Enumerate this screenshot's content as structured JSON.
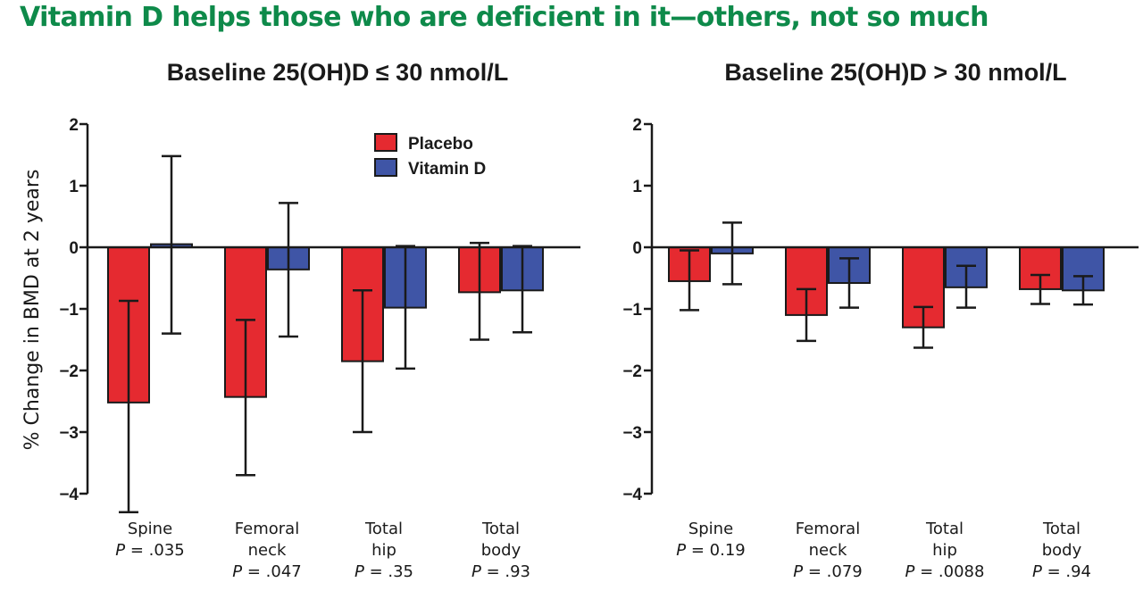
{
  "headline": "Vitamin D helps those who are deficient in it—others, not so much",
  "colors": {
    "headline": "#0e8a4a",
    "placebo": "#e52a30",
    "vitamin_d": "#3f55a6"
  },
  "chart_data": [
    {
      "type": "bar",
      "title": "Baseline 25(OH)D ≤ 30 nmol/L",
      "ylabel": "% Change in BMD at 2 years",
      "ylim": [
        -4,
        2
      ],
      "yticks": [
        2,
        1,
        0,
        -1,
        -2,
        -3,
        -4
      ],
      "ytick_labels": [
        "2",
        "1",
        "0",
        "−1",
        "−2",
        "−3",
        "−4"
      ],
      "legend": {
        "placement": "top-center"
      },
      "categories": [
        {
          "lines": [
            "Spine"
          ],
          "p": ".035"
        },
        {
          "lines": [
            "Femoral",
            "neck"
          ],
          "p": ".047"
        },
        {
          "lines": [
            "Total",
            "hip"
          ],
          "p": ".35"
        },
        {
          "lines": [
            "Total",
            "body"
          ],
          "p": ".93"
        }
      ],
      "series": [
        {
          "name": "Placebo",
          "color": "#e52a30",
          "values": [
            -2.52,
            -2.43,
            -1.85,
            -0.73
          ],
          "err_low": [
            -4.3,
            -3.7,
            -3.0,
            -1.5
          ],
          "err_high": [
            -0.87,
            -1.18,
            -0.7,
            0.07
          ]
        },
        {
          "name": "Vitamin D",
          "color": "#3f55a6",
          "values": [
            0.05,
            -0.36,
            -0.98,
            -0.7
          ],
          "err_low": [
            -1.4,
            -1.45,
            -1.97,
            -1.38
          ],
          "err_high": [
            1.48,
            0.72,
            0.02,
            0.02
          ]
        }
      ]
    },
    {
      "type": "bar",
      "title": "Baseline 25(OH)D > 30 nmol/L",
      "ylim": [
        -4,
        2
      ],
      "yticks": [
        2,
        1,
        0,
        -1,
        -2,
        -3,
        -4
      ],
      "ytick_labels": [
        "2",
        "1",
        "0",
        "−1",
        "−2",
        "−3",
        "−4"
      ],
      "categories": [
        {
          "lines": [
            "Spine"
          ],
          "p": "0.19"
        },
        {
          "lines": [
            "Femoral",
            "neck"
          ],
          "p": ".079"
        },
        {
          "lines": [
            "Total",
            "hip"
          ],
          "p": ".0088"
        },
        {
          "lines": [
            "Total",
            "body"
          ],
          "p": ".94"
        }
      ],
      "series": [
        {
          "name": "Placebo",
          "color": "#e52a30",
          "values": [
            -0.55,
            -1.1,
            -1.3,
            -0.68
          ],
          "err_low": [
            -1.02,
            -1.52,
            -1.63,
            -0.92
          ],
          "err_high": [
            -0.05,
            -0.68,
            -0.97,
            -0.45
          ]
        },
        {
          "name": "Vitamin D",
          "color": "#3f55a6",
          "values": [
            -0.1,
            -0.58,
            -0.65,
            -0.7
          ],
          "err_low": [
            -0.6,
            -0.98,
            -0.98,
            -0.93
          ],
          "err_high": [
            0.4,
            -0.18,
            -0.3,
            -0.47
          ]
        }
      ]
    }
  ]
}
